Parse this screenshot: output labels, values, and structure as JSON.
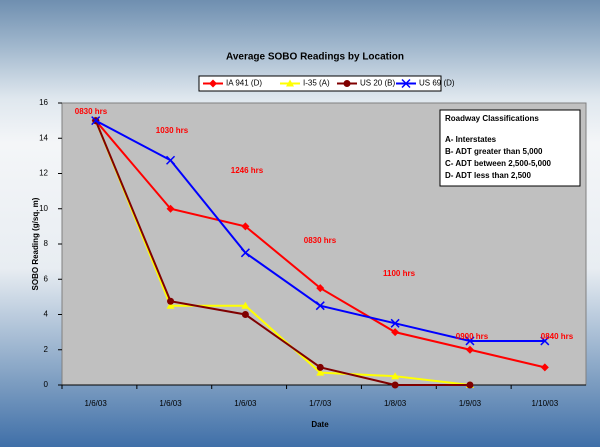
{
  "chart_data": {
    "type": "line",
    "title": "Average SOBO Readings by Location",
    "x_label": "Date",
    "y_label": "SOBO Reading (g/sq. m)",
    "categories": [
      "1/6/03",
      "1/6/03",
      "1/6/03",
      "1/7/03",
      "1/8/03",
      "1/9/03",
      "1/10/03"
    ],
    "series": [
      {
        "name": "IA 941 (D)",
        "color": "#ff0000",
        "marker": "diamond",
        "values": [
          15,
          10,
          9,
          5.5,
          3,
          2,
          1
        ]
      },
      {
        "name": "I-35 (A)",
        "color": "#ffff00",
        "marker": "triangle",
        "values": [
          15,
          4.5,
          4.5,
          0.7,
          0.5,
          0,
          null
        ]
      },
      {
        "name": "US 20 (B)",
        "color": "#800000",
        "marker": "circle",
        "values": [
          15,
          4.75,
          4,
          1,
          0,
          0,
          null
        ]
      },
      {
        "name": "US 69 (D)",
        "color": "#0000ff",
        "marker": "x",
        "values": [
          15,
          12.75,
          7.5,
          4.5,
          3.5,
          2.5,
          2.5
        ]
      }
    ],
    "ylim": [
      0,
      16
    ],
    "yticks": [
      0,
      2,
      4,
      6,
      8,
      10,
      12,
      14,
      16
    ],
    "annotations": [
      "0830 hrs",
      "1030 hrs",
      "1246 hrs",
      "0830 hrs",
      "1100 hrs",
      "0900 hrs",
      "0840 hrs"
    ],
    "text_box": {
      "title": "Roadway Classifications",
      "lines": [
        "A- Interstates",
        "B- ADT greater than 5,000",
        "C- ADT between 2,500-5,000",
        "D- ADT less than 2,500"
      ]
    },
    "legend": "top"
  }
}
